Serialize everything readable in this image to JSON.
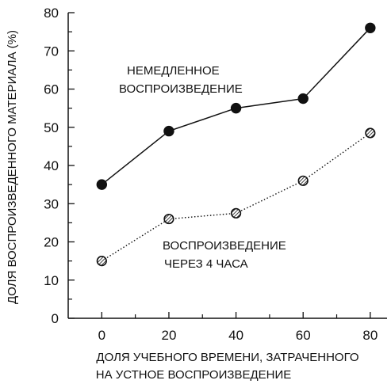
{
  "chart_data": {
    "type": "line",
    "x": [
      0,
      20,
      40,
      60,
      80
    ],
    "xlim": [
      -10,
      85
    ],
    "ylim": [
      0,
      80
    ],
    "x_ticks": [
      "0",
      "20",
      "40",
      "60",
      "80"
    ],
    "y_ticks": [
      "0",
      "10",
      "20",
      "30",
      "40",
      "50",
      "60",
      "70",
      "80"
    ],
    "xlabel_lines": [
      "ДОЛЯ УЧЕБНОГО ВРЕМЕНИ, ЗАТРАЧЕННОГО",
      "НА УСТНОЕ ВОСПРОИЗВЕДЕНИЕ"
    ],
    "ylabel": "ДОЛЯ ВОСПРОИЗВЕДЕННОГО МАТЕРИАЛА (%)",
    "grid": false,
    "series": [
      {
        "name": "НЕМЕДЛЕННОЕ ВОСПРОИЗВЕДЕНИЕ",
        "label_lines": [
          "НЕМЕДЛЕННОЕ",
          "ВОСПРОИЗВЕДЕНИЕ"
        ],
        "values": [
          35,
          49,
          55,
          57.5,
          76
        ],
        "line_style": "solid",
        "marker": "filled",
        "color": "#111111"
      },
      {
        "name": "ВОСПРОИЗВЕДЕНИЕ ЧЕРЕЗ 4 ЧАСА",
        "label_lines": [
          "ВОСПРОИЗВЕДЕНИЕ",
          "ЧЕРЕЗ 4 ЧАСА"
        ],
        "values": [
          15,
          26,
          27.5,
          36,
          48.5
        ],
        "line_style": "dotted",
        "marker": "hatched",
        "color": "#111111"
      }
    ]
  }
}
